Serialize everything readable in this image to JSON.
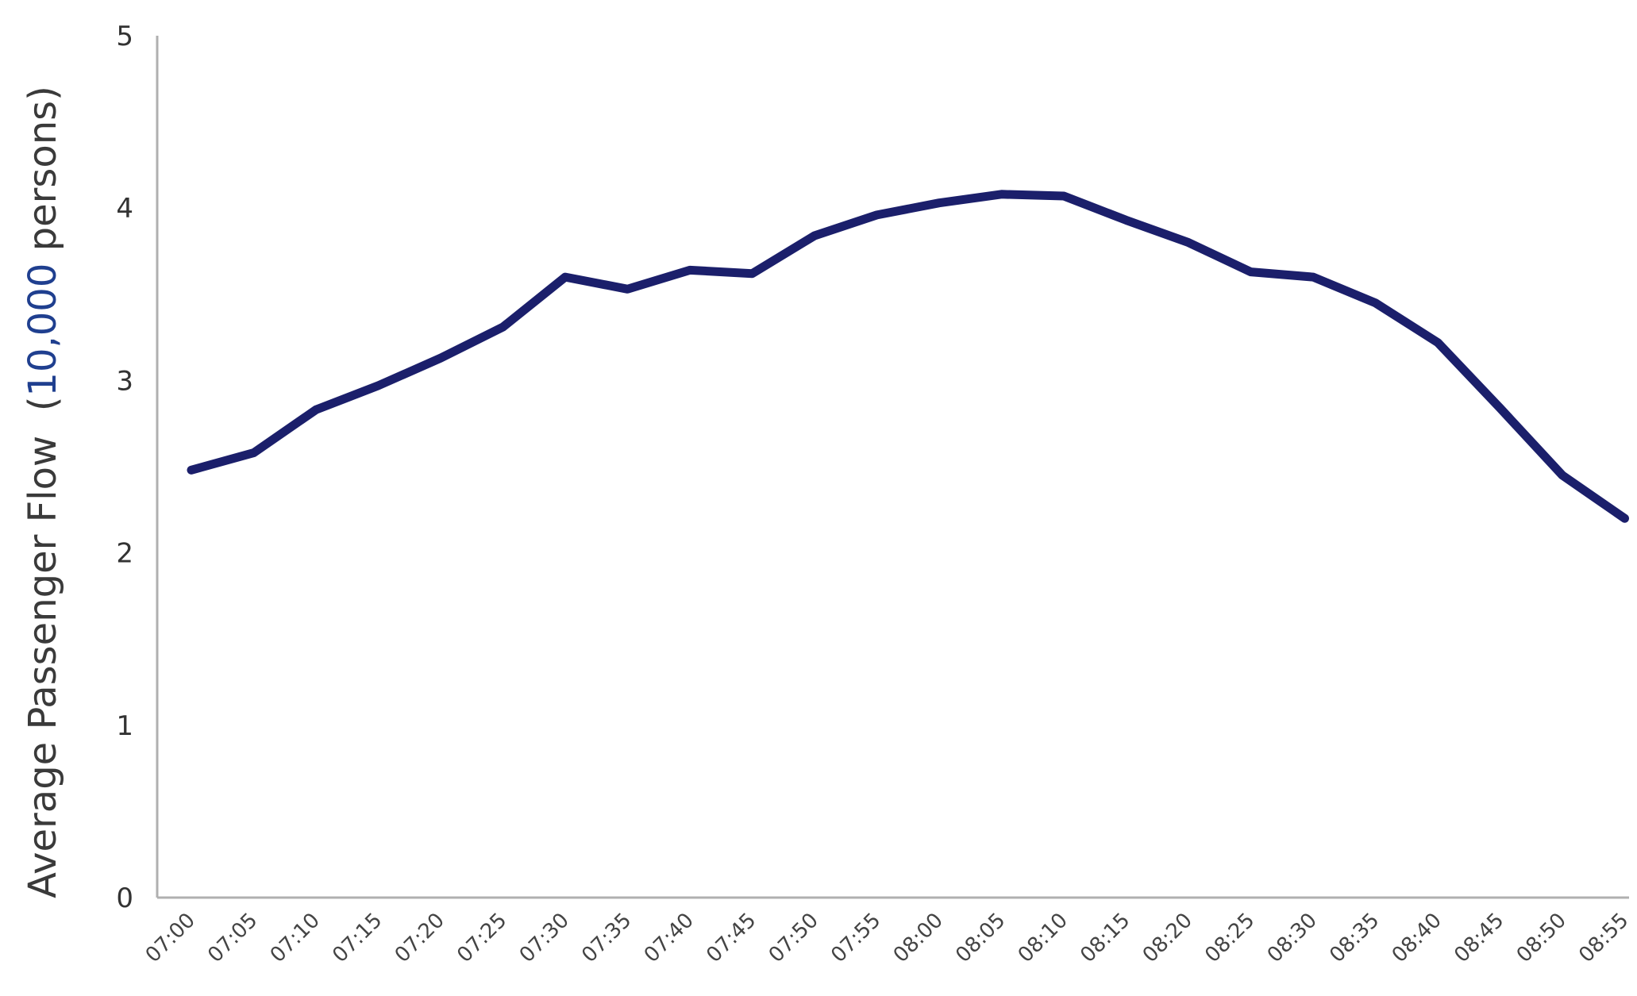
{
  "chart_data": {
    "type": "line",
    "title": "",
    "xlabel": "",
    "ylabel_prefix": "Average Passenger Flow  (",
    "ylabel_number": "10,000",
    "ylabel_suffix": " persons)",
    "ylim": [
      0,
      5
    ],
    "yticks": [
      0,
      1,
      2,
      3,
      4,
      5
    ],
    "grid": false,
    "legend": "none",
    "line_color": "#1b1f6b",
    "categories": [
      "07:00",
      "07:05",
      "07:10",
      "07:15",
      "07:20",
      "07:25",
      "07:30",
      "07:35",
      "07:40",
      "07:45",
      "07:50",
      "07:55",
      "08:00",
      "08:05",
      "08:10",
      "08:15",
      "08:20",
      "08:25",
      "08:30",
      "08:35",
      "08:40",
      "08:45",
      "08:50",
      "08:55"
    ],
    "series": [
      {
        "values": [
          2.48,
          2.58,
          2.83,
          2.97,
          3.13,
          3.31,
          3.6,
          3.53,
          3.64,
          3.62,
          3.84,
          3.96,
          4.03,
          4.08,
          4.07,
          3.93,
          3.8,
          3.63,
          3.6,
          3.45,
          3.22,
          2.84,
          2.45,
          2.2
        ]
      }
    ]
  }
}
